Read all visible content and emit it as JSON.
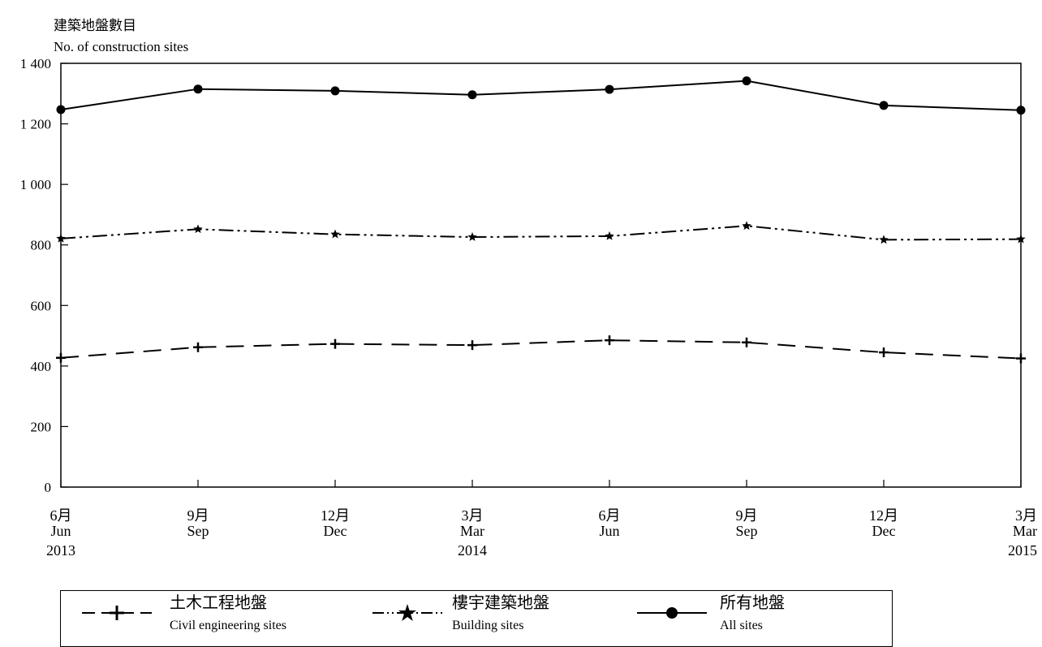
{
  "chart_data": {
    "type": "line",
    "ylabel_zh": "建築地盤數目",
    "ylabel_en": "No. of construction sites",
    "ylim": [
      0,
      1400
    ],
    "yticks": [
      0,
      200,
      400,
      600,
      800,
      1000,
      1200,
      1400
    ],
    "ytick_labels": [
      "0",
      "200",
      "400",
      "600",
      "800",
      "1 000",
      "1 200",
      "1 400"
    ],
    "categories": [
      {
        "zh": "6月",
        "en": "Jun",
        "year": "2013"
      },
      {
        "zh": "9月",
        "en": "Sep",
        "year": ""
      },
      {
        "zh": "12月",
        "en": "Dec",
        "year": ""
      },
      {
        "zh": "3月",
        "en": "Mar",
        "year": "2014"
      },
      {
        "zh": "6月",
        "en": "Jun",
        "year": ""
      },
      {
        "zh": "9月",
        "en": "Sep",
        "year": ""
      },
      {
        "zh": "12月",
        "en": "Dec",
        "year": ""
      },
      {
        "zh": "3月",
        "en": "Mar",
        "year": "2015"
      }
    ],
    "series": [
      {
        "name_zh": "土木工程地盤",
        "name_en": "Civil engineering sites",
        "marker": "plus",
        "dash": "22,12",
        "values": [
          427,
          462,
          473,
          469,
          485,
          478,
          445,
          425
        ]
      },
      {
        "name_zh": "樓宇建築地盤",
        "name_en": "Building sites",
        "marker": "star",
        "dash": "18,5,3,5,3,5",
        "values": [
          821,
          852,
          835,
          826,
          829,
          863,
          817,
          819
        ]
      },
      {
        "name_zh": "所有地盤",
        "name_en": "All sites",
        "marker": "circle",
        "dash": "",
        "values": [
          1247,
          1315,
          1309,
          1296,
          1314,
          1342,
          1261,
          1245
        ]
      }
    ],
    "grid": false,
    "legend_position": "bottom"
  }
}
